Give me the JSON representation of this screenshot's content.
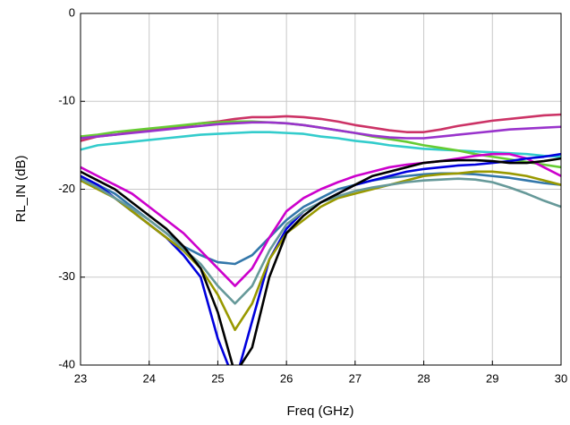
{
  "chart_data": {
    "type": "line",
    "x_label": "Freq (GHz)",
    "y_label": "RL_IN (dB)",
    "x": [
      23,
      23.25,
      23.5,
      23.75,
      24,
      24.25,
      24.5,
      24.75,
      25,
      25.25,
      25.5,
      25.75,
      26,
      26.25,
      26.5,
      26.75,
      27,
      27.25,
      27.5,
      27.75,
      28,
      28.25,
      28.5,
      28.75,
      29,
      29.25,
      29.5,
      29.75,
      30
    ],
    "xlim": [
      23,
      30
    ],
    "xticks": [
      23,
      24,
      25,
      26,
      27,
      28,
      29,
      30
    ],
    "ylim": [
      -40,
      0
    ],
    "yticks": [
      -40,
      -30,
      -20,
      -10,
      0
    ],
    "grid": true,
    "series": [
      {
        "color": "#cc3366",
        "values": [
          -14.5,
          -14,
          -13.8,
          -13.5,
          -13.2,
          -13,
          -12.8,
          -12.5,
          -12.3,
          -12,
          -11.8,
          -11.8,
          -11.7,
          -11.8,
          -12,
          -12.3,
          -12.7,
          -13,
          -13.3,
          -13.5,
          -13.5,
          -13.2,
          -12.8,
          -12.5,
          -12.2,
          -12,
          -11.8,
          -11.6,
          -11.5
        ]
      },
      {
        "color": "#33cccc",
        "values": [
          -15.5,
          -15,
          -14.8,
          -14.6,
          -14.4,
          -14.2,
          -14,
          -13.8,
          -13.7,
          -13.6,
          -13.5,
          -13.5,
          -13.6,
          -13.7,
          -14,
          -14.2,
          -14.5,
          -14.7,
          -15,
          -15.2,
          -15.4,
          -15.5,
          -15.6,
          -15.7,
          -15.8,
          -15.9,
          -16,
          -16.2,
          -16.3
        ]
      },
      {
        "color": "#66cc33",
        "values": [
          -14,
          -13.8,
          -13.5,
          -13.3,
          -13.1,
          -12.9,
          -12.7,
          -12.5,
          -12.4,
          -12.3,
          -12.3,
          -12.4,
          -12.5,
          -12.7,
          -13,
          -13.3,
          -13.6,
          -14,
          -14.3,
          -14.6,
          -15,
          -15.3,
          -15.6,
          -16,
          -16.3,
          -16.6,
          -16.9,
          -17.2,
          -17.5
        ]
      },
      {
        "color": "#9933cc",
        "values": [
          -14.2,
          -14,
          -13.8,
          -13.6,
          -13.4,
          -13.2,
          -13,
          -12.8,
          -12.6,
          -12.5,
          -12.4,
          -12.4,
          -12.5,
          -12.7,
          -13,
          -13.3,
          -13.6,
          -13.9,
          -14.1,
          -14.2,
          -14.2,
          -14,
          -13.8,
          -13.6,
          -13.4,
          -13.2,
          -13.1,
          -13,
          -12.9
        ]
      },
      {
        "color": "#3377aa",
        "values": [
          -18.5,
          -19.5,
          -20.5,
          -22,
          -23.5,
          -25,
          -26.5,
          -27.5,
          -28.3,
          -28.5,
          -27.5,
          -25.5,
          -23.5,
          -22,
          -21,
          -20,
          -19.5,
          -19,
          -18.7,
          -18.5,
          -18.3,
          -18.2,
          -18.2,
          -18.3,
          -18.5,
          -18.7,
          -19,
          -19.3,
          -19.5
        ]
      },
      {
        "color": "#cc00cc",
        "values": [
          -17.5,
          -18.5,
          -19.5,
          -20.5,
          -22,
          -23.5,
          -25,
          -27,
          -29,
          -31,
          -29,
          -25.5,
          -22.5,
          -21,
          -20,
          -19.2,
          -18.5,
          -18,
          -17.5,
          -17.2,
          -17,
          -16.8,
          -16.5,
          -16.2,
          -16,
          -16,
          -16.5,
          -17.5,
          -18.5
        ]
      },
      {
        "color": "#0000dd",
        "values": [
          -18.5,
          -19.5,
          -21,
          -22.5,
          -24,
          -25.5,
          -27.5,
          -30,
          -37,
          -42,
          -35,
          -28,
          -24.5,
          -22.5,
          -21.5,
          -20.5,
          -19.5,
          -19,
          -18.5,
          -18,
          -17.7,
          -17.5,
          -17.3,
          -17.2,
          -17,
          -16.8,
          -16.5,
          -16.3,
          -16
        ]
      },
      {
        "color": "#999900",
        "values": [
          -19,
          -20,
          -21,
          -22.5,
          -24,
          -25.5,
          -27,
          -29,
          -32,
          -36,
          -33,
          -28,
          -25,
          -23.5,
          -22,
          -21,
          -20.5,
          -20,
          -19.5,
          -19,
          -18.5,
          -18.3,
          -18.2,
          -18,
          -18,
          -18.2,
          -18.5,
          -19,
          -19.5
        ]
      },
      {
        "color": "#669999",
        "values": [
          -18.8,
          -19.8,
          -21,
          -22.2,
          -23.5,
          -25,
          -26.8,
          -28.5,
          -31,
          -33,
          -31,
          -27,
          -24,
          -22.5,
          -21.5,
          -20.8,
          -20.2,
          -19.8,
          -19.5,
          -19.2,
          -19,
          -18.9,
          -18.8,
          -18.9,
          -19.2,
          -19.8,
          -20.5,
          -21.3,
          -22
        ]
      },
      {
        "color": "#000000",
        "values": [
          -18,
          -19,
          -20,
          -21.5,
          -23,
          -24.5,
          -26.5,
          -29,
          -34,
          -41,
          -38,
          -30,
          -25,
          -23,
          -21.5,
          -20.5,
          -19.5,
          -18.5,
          -18,
          -17.5,
          -17,
          -16.8,
          -16.7,
          -16.7,
          -16.8,
          -17,
          -17,
          -16.8,
          -16.5
        ]
      }
    ]
  }
}
